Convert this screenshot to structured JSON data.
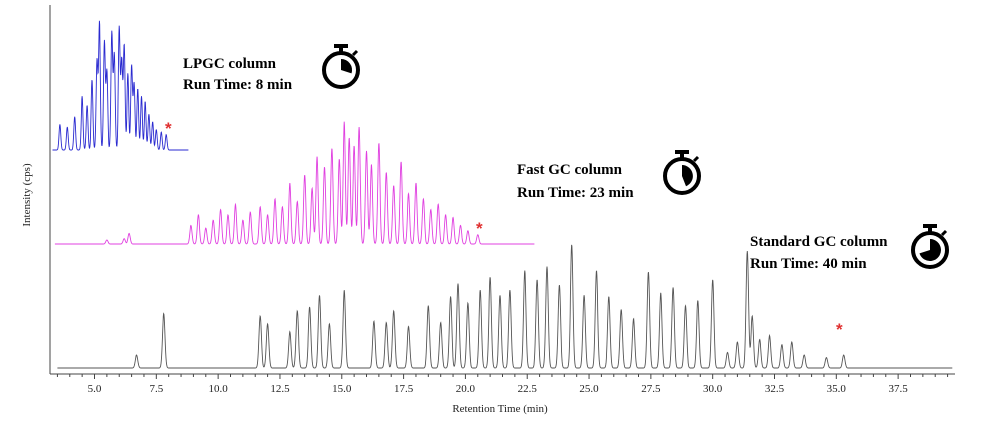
{
  "chart_data": {
    "type": "line",
    "title": "",
    "xlabel": "Retention Time (min)",
    "ylabel": "Intensity (cps)",
    "xlim": [
      3.2,
      39.8
    ],
    "x_ticks": [
      "5.0",
      "7.5",
      "10.0",
      "12.5",
      "15.0",
      "17.5",
      "20.0",
      "22.5",
      "25.0",
      "27.5",
      "30.0",
      "32.5",
      "35.0",
      "37.5"
    ],
    "y_ticks_shown": false,
    "grid": false,
    "legend": "none",
    "series": [
      {
        "annotation_lines": [
          "LPGC column",
          "Run Time: 8 min"
        ],
        "color": "#2a2ad0",
        "run_time_min": 8,
        "x_range": [
          3.3,
          8.8
        ],
        "peaks": [
          [
            3.6,
            0.2
          ],
          [
            3.9,
            0.18
          ],
          [
            4.2,
            0.26
          ],
          [
            4.5,
            0.42
          ],
          [
            4.7,
            0.35
          ],
          [
            4.9,
            0.55
          ],
          [
            5.1,
            0.7
          ],
          [
            5.2,
            1.0
          ],
          [
            5.4,
            0.85
          ],
          [
            5.5,
            0.62
          ],
          [
            5.7,
            0.92
          ],
          [
            5.8,
            0.75
          ],
          [
            6.0,
            0.96
          ],
          [
            6.1,
            0.7
          ],
          [
            6.2,
            0.82
          ],
          [
            6.35,
            0.6
          ],
          [
            6.5,
            0.66
          ],
          [
            6.6,
            0.52
          ],
          [
            6.75,
            0.48
          ],
          [
            6.9,
            0.42
          ],
          [
            7.05,
            0.38
          ],
          [
            7.2,
            0.28
          ],
          [
            7.35,
            0.22
          ],
          [
            7.5,
            0.16
          ],
          [
            7.7,
            0.14
          ],
          [
            7.9,
            0.12
          ]
        ],
        "last_eluting_marker_x": 8.6
      },
      {
        "annotation_lines": [
          "Fast GC column",
          "Run Time: 23 min"
        ],
        "color": "#e040e0",
        "run_time_min": 23,
        "x_range": [
          3.4,
          22.8
        ],
        "peaks": [
          [
            5.5,
            0.03
          ],
          [
            6.2,
            0.04
          ],
          [
            6.4,
            0.08
          ],
          [
            8.9,
            0.14
          ],
          [
            9.2,
            0.22
          ],
          [
            9.5,
            0.12
          ],
          [
            9.8,
            0.18
          ],
          [
            10.1,
            0.26
          ],
          [
            10.4,
            0.22
          ],
          [
            10.7,
            0.3
          ],
          [
            11.0,
            0.18
          ],
          [
            11.3,
            0.24
          ],
          [
            11.7,
            0.28
          ],
          [
            12.0,
            0.22
          ],
          [
            12.3,
            0.34
          ],
          [
            12.6,
            0.28
          ],
          [
            12.9,
            0.46
          ],
          [
            13.2,
            0.32
          ],
          [
            13.5,
            0.52
          ],
          [
            13.8,
            0.42
          ],
          [
            14.0,
            0.66
          ],
          [
            14.3,
            0.58
          ],
          [
            14.6,
            0.72
          ],
          [
            14.9,
            0.64
          ],
          [
            15.1,
            0.92
          ],
          [
            15.3,
            0.8
          ],
          [
            15.5,
            0.74
          ],
          [
            15.7,
            0.88
          ],
          [
            16.0,
            0.7
          ],
          [
            16.2,
            0.6
          ],
          [
            16.5,
            0.76
          ],
          [
            16.8,
            0.54
          ],
          [
            17.1,
            0.44
          ],
          [
            17.4,
            0.62
          ],
          [
            17.7,
            0.38
          ],
          [
            18.0,
            0.46
          ],
          [
            18.3,
            0.34
          ],
          [
            18.6,
            0.26
          ],
          [
            18.9,
            0.3
          ],
          [
            19.2,
            0.22
          ],
          [
            19.5,
            0.2
          ],
          [
            19.8,
            0.14
          ],
          [
            20.1,
            0.1
          ],
          [
            20.5,
            0.07
          ]
        ],
        "last_eluting_marker_x": 21.0
      },
      {
        "annotation_lines": [
          "Standard GC column",
          "Run Time: 40 min"
        ],
        "color": "#555555",
        "run_time_min": 40,
        "x_range": [
          3.5,
          39.7
        ],
        "peaks": [
          [
            6.7,
            0.1
          ],
          [
            7.8,
            0.42
          ],
          [
            11.7,
            0.4
          ],
          [
            12.0,
            0.34
          ],
          [
            12.9,
            0.28
          ],
          [
            13.2,
            0.44
          ],
          [
            13.7,
            0.47
          ],
          [
            14.1,
            0.56
          ],
          [
            14.5,
            0.34
          ],
          [
            15.1,
            0.6
          ],
          [
            16.3,
            0.36
          ],
          [
            16.8,
            0.35
          ],
          [
            17.1,
            0.44
          ],
          [
            17.7,
            0.32
          ],
          [
            18.5,
            0.48
          ],
          [
            19.0,
            0.35
          ],
          [
            19.4,
            0.55
          ],
          [
            19.7,
            0.65
          ],
          [
            20.1,
            0.5
          ],
          [
            20.6,
            0.6
          ],
          [
            21.0,
            0.7
          ],
          [
            21.4,
            0.56
          ],
          [
            21.8,
            0.6
          ],
          [
            22.4,
            0.75
          ],
          [
            22.9,
            0.68
          ],
          [
            23.3,
            0.78
          ],
          [
            23.8,
            0.64
          ],
          [
            24.3,
            0.95
          ],
          [
            24.8,
            0.56
          ],
          [
            25.3,
            0.75
          ],
          [
            25.8,
            0.55
          ],
          [
            26.3,
            0.45
          ],
          [
            26.8,
            0.38
          ],
          [
            27.4,
            0.74
          ],
          [
            27.9,
            0.58
          ],
          [
            28.4,
            0.62
          ],
          [
            28.9,
            0.48
          ],
          [
            29.4,
            0.52
          ],
          [
            30.0,
            0.68
          ],
          [
            30.6,
            0.12
          ],
          [
            31.0,
            0.2
          ],
          [
            31.4,
            0.9
          ],
          [
            31.6,
            0.4
          ],
          [
            31.9,
            0.22
          ],
          [
            32.3,
            0.25
          ],
          [
            32.8,
            0.18
          ],
          [
            33.2,
            0.2
          ],
          [
            33.7,
            0.1
          ],
          [
            34.6,
            0.08
          ],
          [
            35.3,
            0.1
          ]
        ],
        "last_eluting_marker_x": 35.4
      }
    ],
    "marker": "*",
    "marker_color": "#e03030"
  },
  "icons": [
    "stopwatch-icon",
    "stopwatch-icon",
    "stopwatch-icon"
  ],
  "colors": {
    "axis": "#444444",
    "text": "#000000"
  }
}
